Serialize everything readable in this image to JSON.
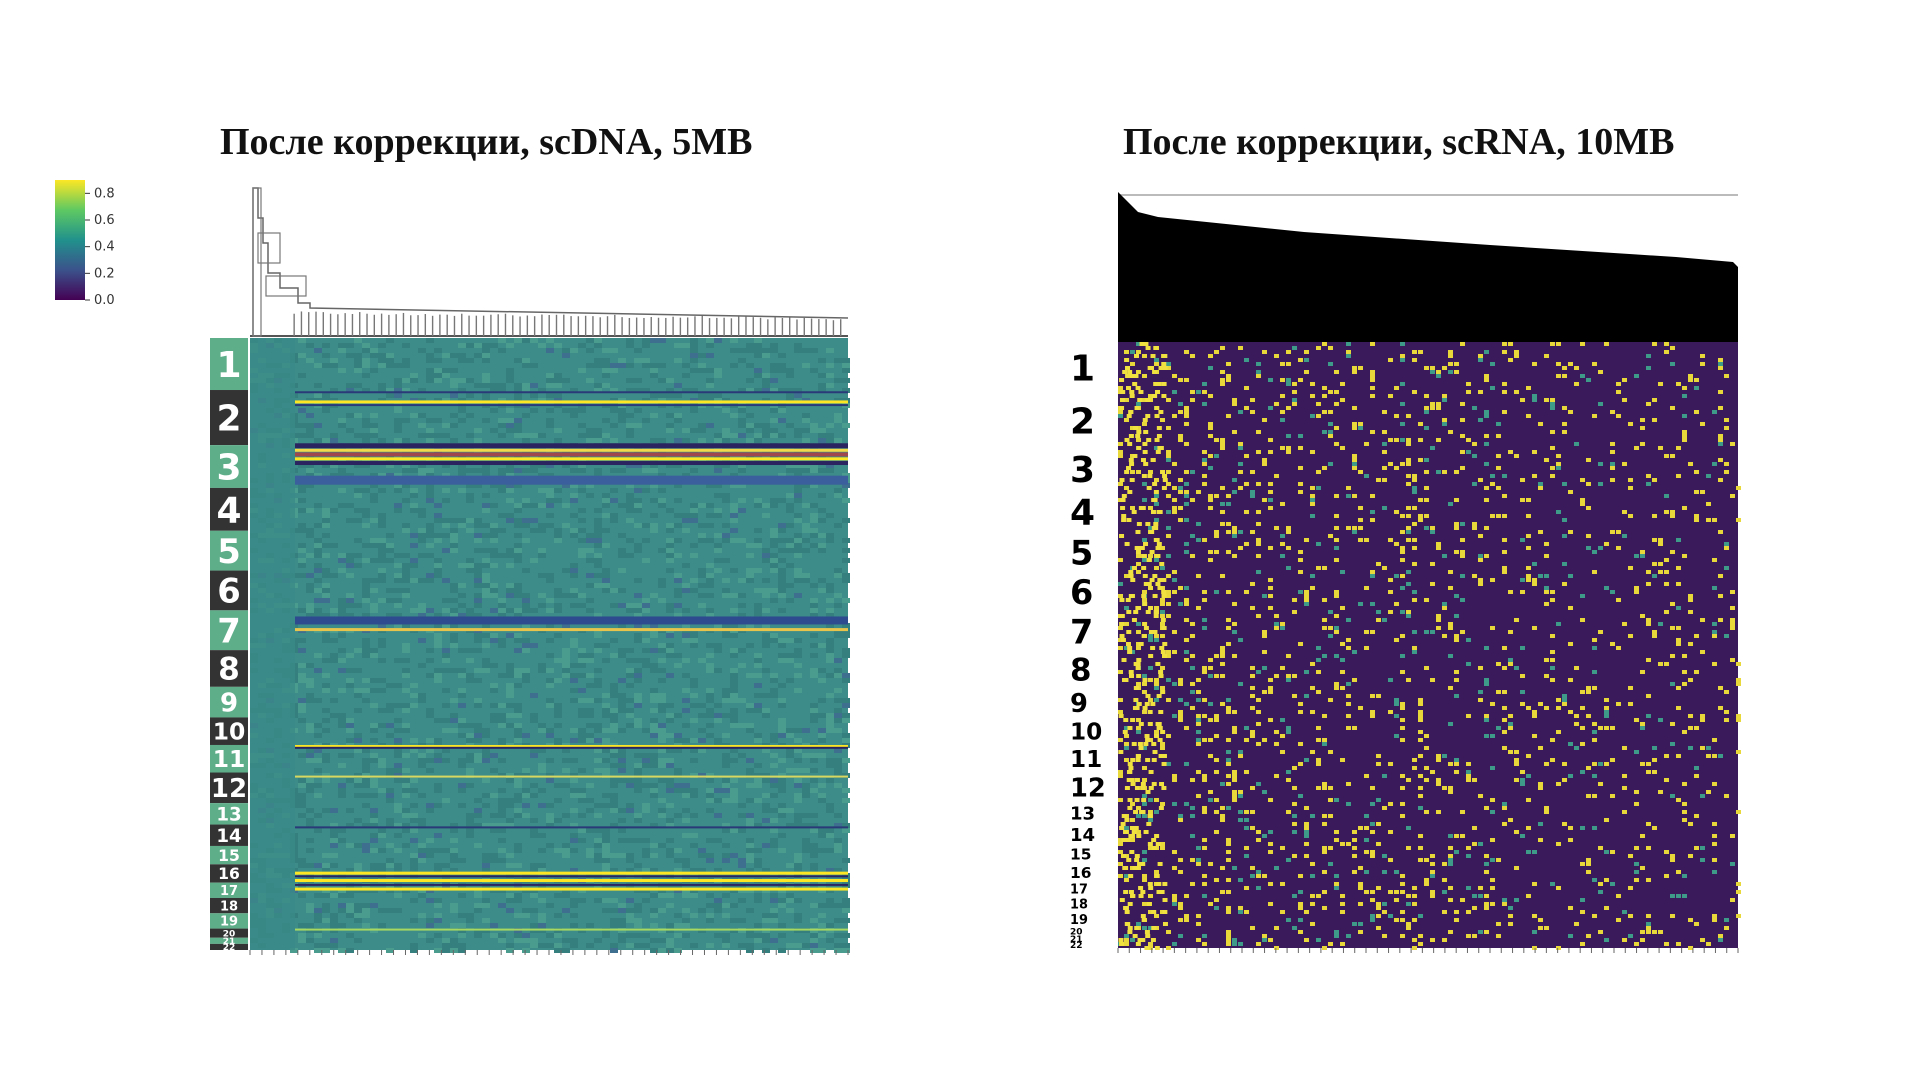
{
  "slide": {
    "left_title": "После коррекции, scDNA, 5MB",
    "right_title": "После коррекции, scRNA, 10MB"
  },
  "colorbar": {
    "ticks": [
      "0.8",
      "0.6",
      "0.4",
      "0.2",
      "0.0"
    ],
    "values": [
      0.8,
      0.6,
      0.4,
      0.2,
      0.0
    ],
    "range": [
      0,
      0.9
    ],
    "colormap": "viridis"
  },
  "colors": {
    "label_light": "#5fae8a",
    "label_dark": "#333333",
    "scdna_base": "#3d8c8a",
    "scrna_base": "#3b1a5c",
    "highlight": "#f0e040"
  },
  "chart_data": [
    {
      "type": "heatmap",
      "title": "После коррекции, scDNA, 5MB",
      "rows": "chromosomes",
      "row_labels": [
        "1",
        "2",
        "3",
        "4",
        "5",
        "6",
        "7",
        "8",
        "9",
        "10",
        "11",
        "12",
        "13",
        "14",
        "15",
        "16",
        "17",
        "18",
        "19",
        "20",
        "21",
        "22"
      ],
      "dendrogram": "top",
      "colorbar": [
        0,
        0.9
      ]
    },
    {
      "type": "heatmap",
      "title": "После коррекции, scRNA, 10MB",
      "rows": "chromosomes",
      "row_labels": [
        "1",
        "2",
        "3",
        "4",
        "5",
        "6",
        "7",
        "8",
        "9",
        "10",
        "11",
        "12",
        "13",
        "14",
        "15",
        "16",
        "17",
        "18",
        "19",
        "20",
        "21",
        "22"
      ],
      "dendrogram": "top",
      "colorbar": [
        0,
        0.9
      ]
    }
  ]
}
